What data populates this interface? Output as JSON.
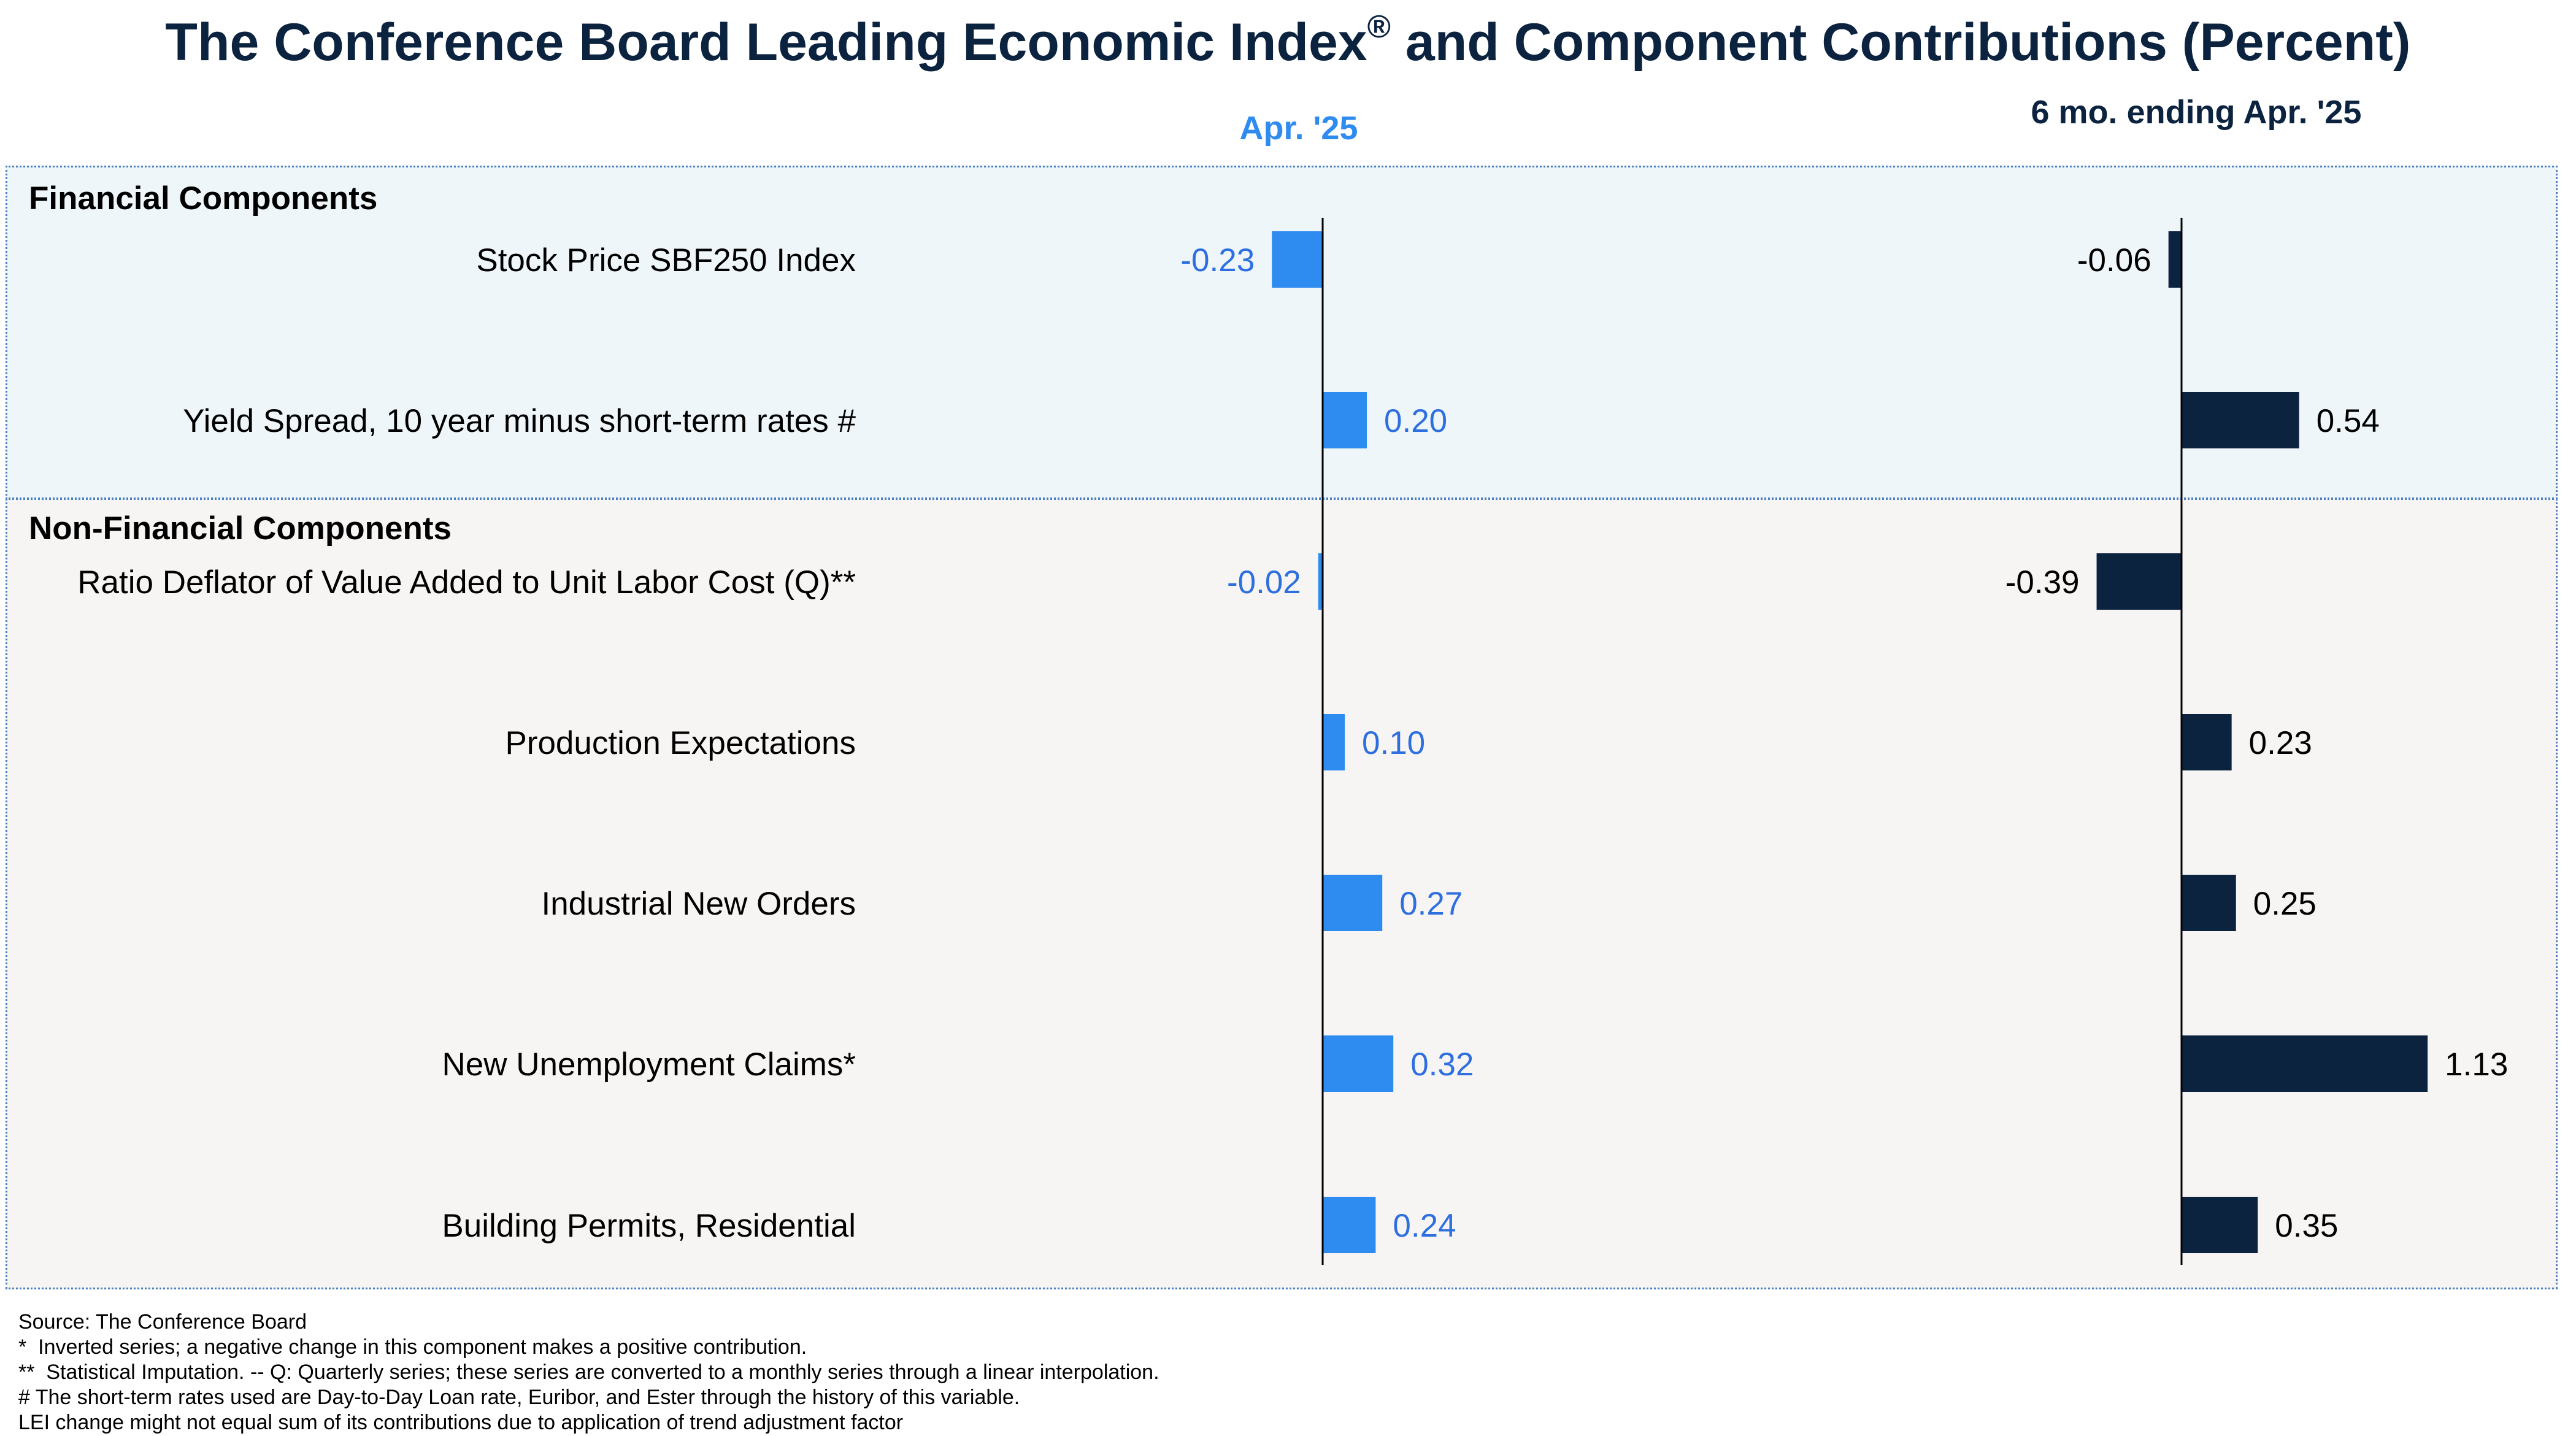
{
  "title_main": "The Conference Board Leading Economic Index",
  "title_reg": "®",
  "title_tail": " and Component Contributions (Percent)",
  "column_1_label": "Apr. '25",
  "column_2_label": "6 mo. ending Apr. '25",
  "sections": {
    "financial": "Financial Components",
    "nonfinancial": "Non-Financial Components"
  },
  "colors": {
    "monthly": "#2e8bf0",
    "six_month": "#0c2340",
    "monthly_label": "#2e6fe0",
    "six_month_label": "#000000"
  },
  "chart_data": {
    "type": "bar",
    "orientation": "horizontal",
    "categories": [
      "Stock Price SBF250 Index",
      "Yield Spread, 10 year minus short-term rates #",
      "Ratio Deflator of Value Added to Unit Labor Cost (Q)**",
      "Production Expectations",
      "Industrial New Orders",
      "New Unemployment Claims*",
      "Building Permits, Residential"
    ],
    "series": [
      {
        "name": "Apr. '25",
        "values": [
          -0.23,
          0.2,
          -0.02,
          0.1,
          0.27,
          0.32,
          0.24
        ],
        "labels": [
          "-0.23",
          "0.20",
          "-0.02",
          "0.10",
          "0.27",
          "0.32",
          "0.24"
        ]
      },
      {
        "name": "6 mo. ending Apr. '25",
        "values": [
          -0.06,
          0.54,
          -0.39,
          0.23,
          0.25,
          1.13,
          0.35
        ],
        "labels": [
          "-0.06",
          "0.54",
          "-0.39",
          "0.23",
          "0.25",
          "1.13",
          "0.35"
        ]
      }
    ]
  },
  "footnotes": [
    "Source: The Conference Board",
    "*  Inverted series; a negative change in this component makes a positive contribution.",
    "**  Statistical Imputation. -- Q: Quarterly series; these series are converted to a monthly series through a linear interpolation.",
    "# The short-term rates used are Day-to-Day Loan rate, Euribor, and Ester through the history of this variable.",
    "LEI change might not equal sum of its contributions due to application of trend adjustment factor"
  ]
}
